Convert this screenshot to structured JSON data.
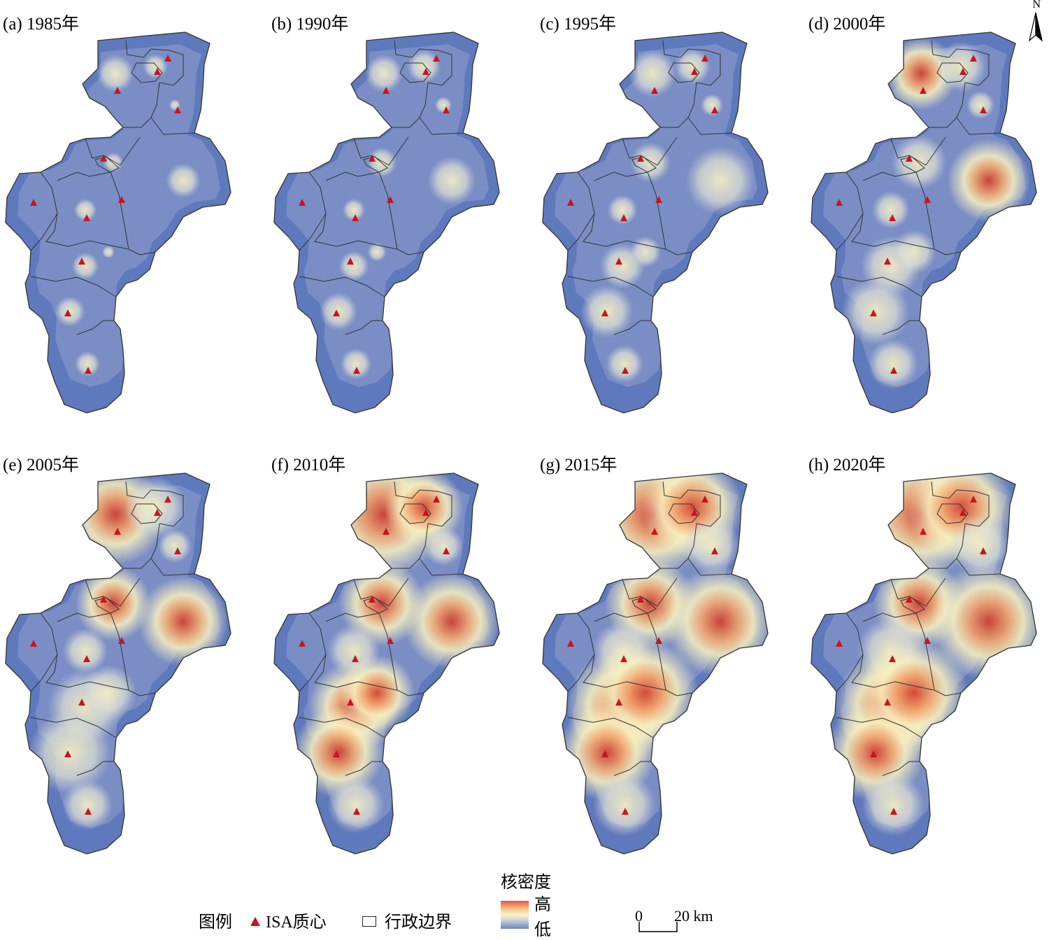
{
  "panels": [
    {
      "label": "(a) 1985年",
      "level": 0.05
    },
    {
      "label": "(b) 1990年",
      "level": 0.12
    },
    {
      "label": "(c) 1995年",
      "level": 0.22
    },
    {
      "label": "(d) 2000年",
      "level": 0.34
    },
    {
      "label": "(e) 2005年",
      "level": 0.5
    },
    {
      "label": "(f) 2010年",
      "level": 0.64
    },
    {
      "label": "(g) 2015年",
      "level": 0.85
    },
    {
      "label": "(h) 2020年",
      "level": 1.0
    }
  ],
  "north_arrow": {
    "letter": "N"
  },
  "legend": {
    "title": "图例",
    "isa_label": "ISA质心",
    "boundary_label": "行政边界",
    "kernel_title": "核密度",
    "kernel_high": "高",
    "kernel_low": "低"
  },
  "scale_bar": {
    "zero": "0",
    "twenty": "20 km"
  },
  "colors": {
    "low": "#5f79bd",
    "mid": "#f8f0c0",
    "high": "#d23b2b",
    "centroid": "#c8141e",
    "boundary": "#333333"
  }
}
